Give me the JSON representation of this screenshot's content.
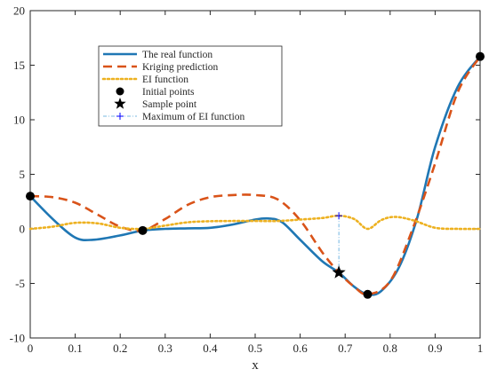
{
  "chart_data": {
    "type": "line",
    "title": "",
    "xlabel": "x",
    "ylabel": "",
    "xlim": [
      0,
      1
    ],
    "ylim": [
      -10,
      20
    ],
    "xticks": [
      0,
      0.1,
      0.2,
      0.3,
      0.4,
      0.5,
      0.6,
      0.7,
      0.8,
      0.9,
      1
    ],
    "yticks": [
      -10,
      -5,
      0,
      5,
      10,
      15,
      20
    ],
    "grid": false,
    "legend_position": "top-left",
    "series": [
      {
        "name": "The real function",
        "style": "solid",
        "color": "#1f77b4",
        "x": [
          0,
          0.05,
          0.1,
          0.14,
          0.2,
          0.25,
          0.3,
          0.35,
          0.4,
          0.45,
          0.5,
          0.53,
          0.56,
          0.6,
          0.65,
          0.686,
          0.72,
          0.75,
          0.78,
          0.82,
          0.86,
          0.9,
          0.95,
          1
        ],
        "y": [
          3.0,
          0.9,
          -0.8,
          -1.0,
          -0.6,
          -0.15,
          0.0,
          0.05,
          0.1,
          0.4,
          0.85,
          0.95,
          0.6,
          -1.0,
          -3.0,
          -4.0,
          -5.3,
          -6.0,
          -5.7,
          -3.5,
          1.0,
          7.5,
          13.0,
          15.8
        ]
      },
      {
        "name": "Kriging prediction",
        "style": "dashed",
        "color": "#d95319",
        "x": [
          0,
          0.05,
          0.1,
          0.15,
          0.2,
          0.25,
          0.3,
          0.35,
          0.4,
          0.45,
          0.5,
          0.55,
          0.6,
          0.65,
          0.686,
          0.72,
          0.75,
          0.8,
          0.85,
          0.9,
          0.95,
          1
        ],
        "y": [
          3.0,
          2.9,
          2.4,
          1.3,
          0.2,
          -0.15,
          0.9,
          2.2,
          2.9,
          3.1,
          3.1,
          2.7,
          0.8,
          -2.2,
          -4.0,
          -5.3,
          -6.0,
          -4.8,
          0.0,
          6.0,
          12.5,
          15.8
        ]
      },
      {
        "name": "EI function",
        "style": "dotted",
        "color": "#edb120",
        "x": [
          0,
          0.05,
          0.1,
          0.15,
          0.2,
          0.25,
          0.3,
          0.35,
          0.4,
          0.45,
          0.5,
          0.55,
          0.6,
          0.65,
          0.686,
          0.72,
          0.75,
          0.78,
          0.81,
          0.85,
          0.9,
          0.95,
          1
        ],
        "y": [
          0.0,
          0.2,
          0.55,
          0.5,
          0.1,
          0.0,
          0.3,
          0.6,
          0.7,
          0.72,
          0.72,
          0.72,
          0.85,
          1.0,
          1.2,
          0.9,
          0.0,
          0.8,
          1.1,
          0.8,
          0.1,
          0.0,
          0.0
        ]
      }
    ],
    "markers": [
      {
        "name": "Initial points",
        "marker": "circle",
        "color": "#000000",
        "x": [
          0,
          0.25,
          0.75,
          1
        ],
        "y": [
          3.0,
          -0.15,
          -6.0,
          15.8
        ]
      },
      {
        "name": "Sample point",
        "marker": "star",
        "color": "#000000",
        "x": [
          0.686
        ],
        "y": [
          -4.0
        ]
      },
      {
        "name": "Maximum of EI function",
        "marker": "plus",
        "color": "#0000ff",
        "x": [
          0.686
        ],
        "y": [
          1.2
        ]
      }
    ]
  }
}
